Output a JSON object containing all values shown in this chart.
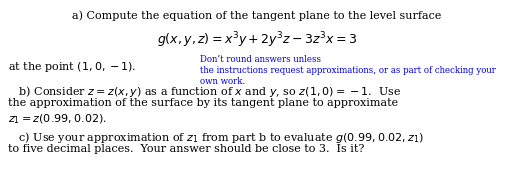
{
  "background_color": "#ffffff",
  "fig_w": 5.14,
  "fig_h": 1.84,
  "dpi": 100,
  "fs_main": 8.0,
  "fs_eq": 9.0,
  "fs_blue": 6.2,
  "line_a": "a) Compute the equation of the tangent plane to the level surface",
  "eq": "$g(x, y, z) = x^3y + 2y^3z - 3z^3x = 3$",
  "point": "at the point $(1, 0, -1)$.",
  "blue1": "Don’t round answers unless",
  "blue2": "the instructions request approximations, or as part of checking your",
  "blue3": "own work.",
  "b1": "   b) Consider $z = z(x, y)$ as a function of $x$ and $y$, so $z(1, 0) = -1$.  Use",
  "b2": "the approximation of the surface by its tangent plane to approximate",
  "b3": "$z_1 = z(0.99, 0.02)$.",
  "c1": "   c) Use your approximation of $z_1$ from part b to evaluate $g(0.99, 0.02, z_1)$",
  "c2": "to five decimal places.  Your answer should be close to 3.  Is it?",
  "black": "#000000",
  "blue": "#0000dd"
}
